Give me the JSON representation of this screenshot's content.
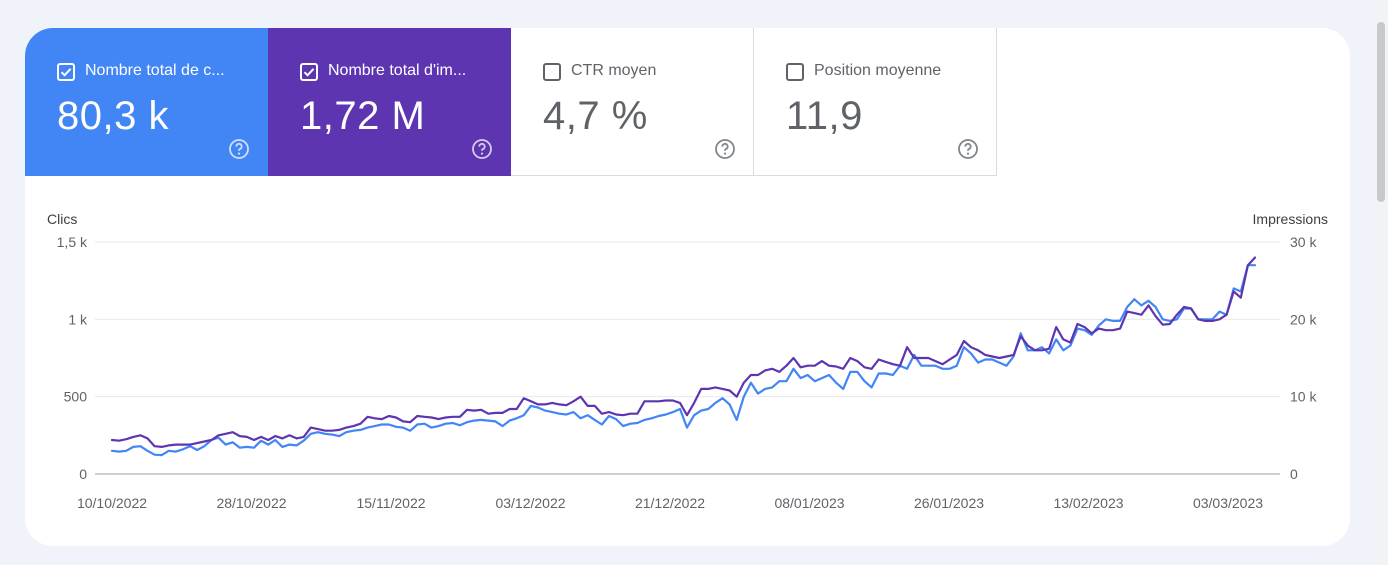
{
  "metrics": {
    "clicks": {
      "title": "Nombre total de c...",
      "value": "80,3 k",
      "checked": true,
      "color": "#4285f4"
    },
    "impressions": {
      "title": "Nombre total d'im...",
      "value": "1,72 M",
      "checked": true,
      "color": "#5e35b1"
    },
    "ctr": {
      "title": "CTR moyen",
      "value": "4,7 %",
      "checked": false
    },
    "position": {
      "title": "Position moyenne",
      "value": "11,9",
      "checked": false
    }
  },
  "chart_data": {
    "type": "line",
    "left_axis_title": "Clics",
    "right_axis_title": "Impressions",
    "left_ticks": [
      "0",
      "500",
      "1 k",
      "1,5 k"
    ],
    "right_ticks": [
      "0",
      "10 k",
      "20 k",
      "30 k"
    ],
    "left_ylim": [
      0,
      1500
    ],
    "right_ylim": [
      0,
      30000
    ],
    "x_ticks": [
      "10/10/2022",
      "28/10/2022",
      "15/11/2022",
      "03/12/2022",
      "21/12/2022",
      "08/01/2023",
      "26/01/2023",
      "13/02/2023",
      "03/03/2023"
    ],
    "x_start": "10/10/2022",
    "x_end": "07/03/2023",
    "grid": true,
    "series": [
      {
        "name": "Clics",
        "axis": "left",
        "color": "#4285f4",
        "values": [
          150,
          145,
          150,
          175,
          180,
          150,
          125,
          122,
          150,
          145,
          160,
          180,
          155,
          180,
          220,
          235,
          190,
          205,
          170,
          175,
          170,
          215,
          190,
          220,
          175,
          190,
          185,
          215,
          260,
          270,
          260,
          255,
          245,
          270,
          280,
          285,
          300,
          310,
          320,
          320,
          305,
          300,
          280,
          320,
          325,
          300,
          310,
          325,
          330,
          315,
          335,
          345,
          350,
          345,
          340,
          310,
          345,
          360,
          380,
          440,
          430,
          410,
          400,
          390,
          385,
          400,
          360,
          380,
          350,
          320,
          375,
          355,
          310,
          325,
          330,
          350,
          360,
          375,
          385,
          400,
          420,
          300,
          380,
          410,
          420,
          460,
          490,
          450,
          350,
          500,
          590,
          520,
          550,
          560,
          600,
          600,
          680,
          620,
          640,
          600,
          620,
          640,
          590,
          550,
          660,
          660,
          600,
          560,
          650,
          650,
          640,
          700,
          680,
          770,
          700,
          700,
          700,
          680,
          680,
          700,
          820,
          780,
          720,
          740,
          740,
          720,
          700,
          760,
          910,
          800,
          800,
          820,
          780,
          870,
          800,
          830,
          940,
          930,
          900,
          960,
          1000,
          990,
          990,
          1080,
          1130,
          1090,
          1120,
          1080,
          1000,
          990,
          1000,
          1070,
          1070,
          1000,
          1000,
          1000,
          1050,
          1030,
          1200,
          1180,
          1350,
          1350
        ]
      },
      {
        "name": "Impressions",
        "axis": "right",
        "color": "#5e35b1",
        "values": [
          4400,
          4300,
          4500,
          4800,
          5000,
          4600,
          3600,
          3500,
          3700,
          3800,
          3800,
          3800,
          4000,
          4200,
          4400,
          5000,
          5200,
          5400,
          4900,
          4800,
          4400,
          4800,
          4400,
          4900,
          4600,
          5000,
          4600,
          4800,
          6000,
          5800,
          5600,
          5600,
          5700,
          6000,
          6200,
          6500,
          7400,
          7200,
          7100,
          7500,
          7300,
          6800,
          6700,
          7500,
          7400,
          7300,
          7100,
          7300,
          7400,
          7400,
          8300,
          8200,
          8300,
          7800,
          7900,
          7900,
          8400,
          8400,
          9800,
          9400,
          9000,
          9000,
          9200,
          9000,
          8900,
          9400,
          10000,
          8800,
          8800,
          7800,
          8000,
          7700,
          7600,
          7800,
          7800,
          9400,
          9400,
          9400,
          9500,
          9500,
          9200,
          7600,
          9200,
          11000,
          11000,
          11200,
          11000,
          10800,
          10000,
          11800,
          12800,
          12800,
          13400,
          13600,
          13200,
          14000,
          15000,
          13800,
          14000,
          14000,
          14600,
          14000,
          13900,
          13600,
          15000,
          14600,
          13800,
          13600,
          14800,
          14500,
          14200,
          14000,
          16400,
          15000,
          15000,
          15000,
          14600,
          14200,
          14800,
          15400,
          17200,
          16400,
          16000,
          15400,
          15200,
          15000,
          15200,
          15400,
          17800,
          16600,
          16000,
          16000,
          16200,
          19000,
          17400,
          17000,
          19400,
          19000,
          18200,
          18800,
          18600,
          18600,
          18800,
          21000,
          20800,
          20600,
          21800,
          20400,
          19300,
          19400,
          20600,
          21600,
          21400,
          20000,
          19800,
          19800,
          20000,
          20600,
          23600,
          22800,
          27000,
          28000
        ]
      }
    ]
  }
}
